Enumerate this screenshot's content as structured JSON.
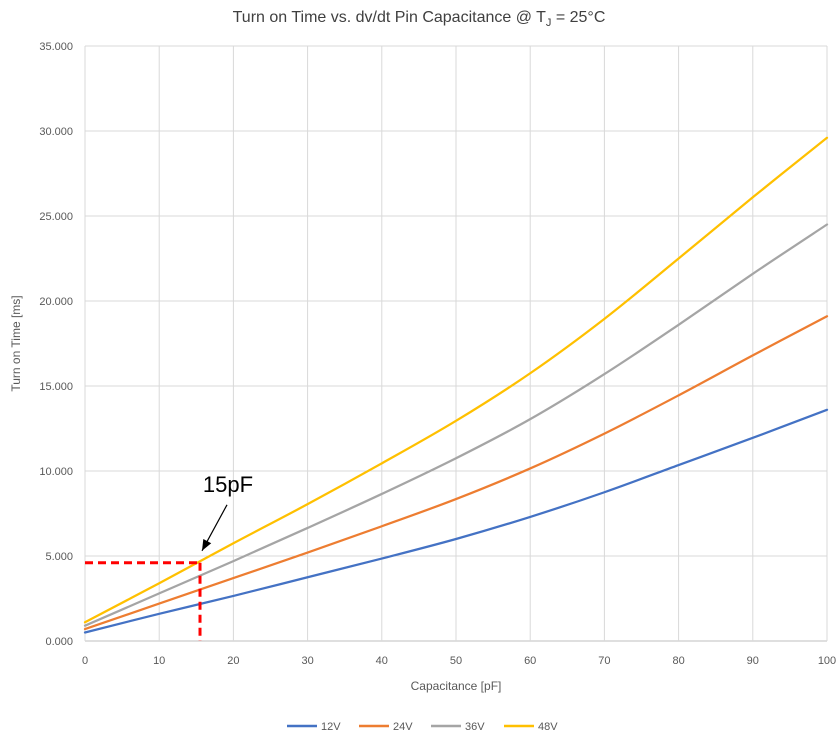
{
  "chart_data": {
    "type": "line",
    "title": {
      "main": "Turn on Time vs. dv/dt Pin Capacitance @ T",
      "subscript": "J",
      "suffix": " = 25°C"
    },
    "xlabel": "Capacitance [pF]",
    "ylabel": "Turn on Time [ms]",
    "xlim": [
      0,
      100
    ],
    "ylim": [
      0,
      35
    ],
    "x_ticks": [
      "0",
      "10",
      "20",
      "30",
      "40",
      "50",
      "60",
      "70",
      "80",
      "90",
      "100"
    ],
    "y_ticks": [
      "0.000",
      "5.000",
      "10.000",
      "15.000",
      "20.000",
      "25.000",
      "30.000",
      "35.000"
    ],
    "grid": true,
    "legend_position": "bottom",
    "x": [
      0,
      10,
      20,
      30,
      40,
      50,
      60,
      70,
      80,
      90,
      100
    ],
    "series": [
      {
        "name": "12V",
        "color": "#4472C4",
        "values": [
          0.5,
          1.6,
          2.65,
          3.75,
          4.85,
          6.0,
          7.3,
          8.75,
          10.35,
          11.95,
          13.6
        ]
      },
      {
        "name": "24V",
        "color": "#ED7D31",
        "values": [
          0.7,
          2.2,
          3.7,
          5.2,
          6.75,
          8.35,
          10.15,
          12.2,
          14.45,
          16.8,
          19.1
        ]
      },
      {
        "name": "36V",
        "color": "#A5A5A5",
        "values": [
          0.9,
          2.8,
          4.7,
          6.65,
          8.65,
          10.75,
          13.05,
          15.7,
          18.6,
          21.6,
          24.5
        ]
      },
      {
        "name": "48V",
        "color": "#FFC000",
        "values": [
          1.1,
          3.4,
          5.75,
          8.05,
          10.45,
          12.95,
          15.75,
          18.95,
          22.5,
          26.1,
          29.6
        ]
      }
    ],
    "annotation": {
      "label": "15pF",
      "x": 15.5,
      "y": 4.6,
      "color": "#FF0000"
    }
  }
}
